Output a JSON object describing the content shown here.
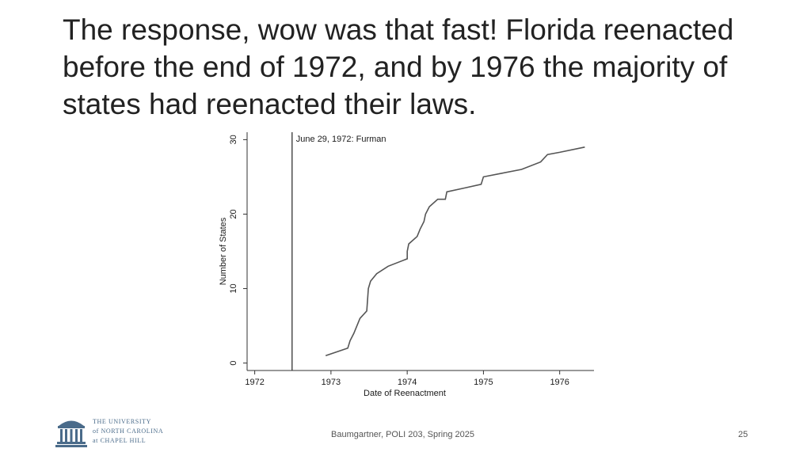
{
  "slide": {
    "title": "The response, wow was that fast! Florida reenacted before the end of 1972, and by 1976 the majority of states had reenacted their laws.",
    "footer": "Baumgartner, POLI 203, Spring 2025",
    "page_number": "25",
    "logo": {
      "line1": "THE UNIVERSITY",
      "line2": "of NORTH CAROLINA",
      "line3": "at CHAPEL HILL",
      "icon": "old-well-icon",
      "color": "#4a6b8a"
    }
  },
  "chart_data": {
    "type": "line",
    "title": "",
    "xlabel": "Date of Reenactment",
    "ylabel": "Number of States",
    "xlim": [
      1971.9,
      1976.45
    ],
    "ylim": [
      -1,
      31
    ],
    "x_ticks": [
      1972,
      1973,
      1974,
      1975,
      1976
    ],
    "y_ticks": [
      0,
      10,
      20,
      30
    ],
    "grid": false,
    "line_color": "#555555",
    "series": [
      {
        "x": [
          1972.93,
          1973.22,
          1973.25,
          1973.3,
          1973.38,
          1973.47,
          1973.49,
          1973.52,
          1973.6,
          1973.75,
          1974.0,
          1974.0,
          1974.02,
          1974.13,
          1974.17,
          1974.22,
          1974.24,
          1974.29,
          1974.4,
          1974.5,
          1974.52,
          1974.75,
          1974.97,
          1975.0,
          1975.25,
          1975.5,
          1975.75,
          1975.84,
          1976.0,
          1976.33
        ],
        "y": [
          1,
          2,
          3,
          4,
          6,
          7,
          10,
          11,
          12,
          13,
          14,
          15,
          16,
          17,
          18,
          19,
          20,
          21,
          22,
          22,
          23,
          23.5,
          24,
          25,
          25.5,
          26,
          27,
          28,
          28.3,
          29
        ]
      }
    ],
    "vline": {
      "x": 1972.49,
      "label": "June 29, 1972: Furman"
    }
  }
}
